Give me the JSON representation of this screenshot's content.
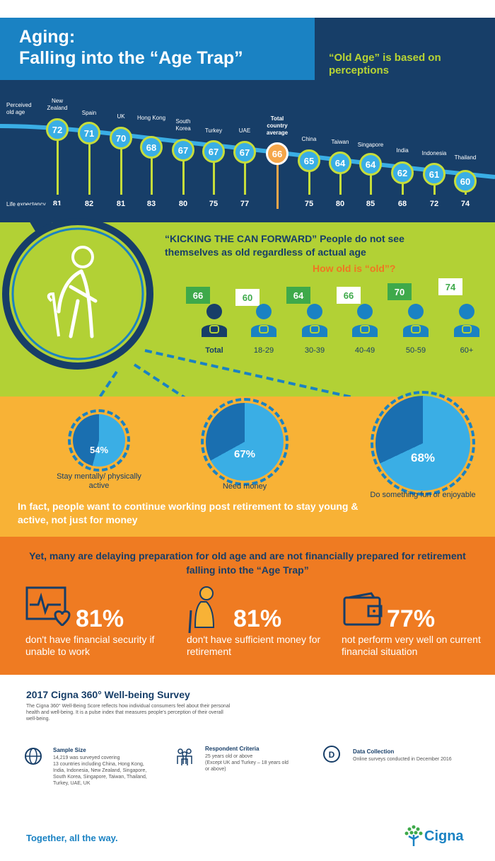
{
  "header": {
    "title": "Aging:\nFalling into the “Age Trap”",
    "subtitle": "“Old Age” is based on perceptions",
    "perceived_label": "Perceived\nold age",
    "life_label": "Life expectancy",
    "countries": [
      {
        "name": "New Zealand",
        "old_age": "72",
        "life": "81"
      },
      {
        "name": "Spain",
        "old_age": "71",
        "life": "82"
      },
      {
        "name": "UK",
        "old_age": "70",
        "life": "81"
      },
      {
        "name": "Hong Kong",
        "old_age": "68",
        "life": "83"
      },
      {
        "name": "South Korea",
        "old_age": "67",
        "life": "80"
      },
      {
        "name": "Turkey",
        "old_age": "67",
        "life": "75"
      },
      {
        "name": "UAE",
        "old_age": "67",
        "life": "77"
      },
      {
        "name": "Total country average",
        "old_age": "66",
        "life": ""
      },
      {
        "name": "China",
        "old_age": "65",
        "life": "75"
      },
      {
        "name": "Taiwan",
        "old_age": "64",
        "life": "80"
      },
      {
        "name": "Singapore",
        "old_age": "64",
        "life": "85"
      },
      {
        "name": "India",
        "old_age": "62",
        "life": "68"
      },
      {
        "name": "Indonesia",
        "old_age": "61",
        "life": "72"
      },
      {
        "name": "Thailand",
        "old_age": "60",
        "life": "74"
      }
    ]
  },
  "kicking": {
    "headline": "“KICKING THE CAN FORWARD” People do not see themselves as old regardless of actual age",
    "question": "How old is “old”?",
    "groups": [
      {
        "label": "Total",
        "value": "66"
      },
      {
        "label": "18-29",
        "value": "60"
      },
      {
        "label": "30-39",
        "value": "64"
      },
      {
        "label": "40-49",
        "value": "66"
      },
      {
        "label": "50-59",
        "value": "70"
      },
      {
        "label": "60+",
        "value": "74"
      }
    ]
  },
  "working": {
    "items": [
      {
        "pct": "54%",
        "caption": "Stay mentally/ physically active",
        "fraction": 0.54
      },
      {
        "pct": "67%",
        "caption": "Need money",
        "fraction": 0.67
      },
      {
        "pct": "68%",
        "caption": "Do something fun or enjoyable",
        "fraction": 0.68
      }
    ],
    "statement": "In fact, people want to continue working post retirement to stay young & active, not just for money"
  },
  "trap": {
    "headline": "Yet, many are delaying preparation for old age and are not financially prepared for retirement falling into the “Age Trap”",
    "stats": [
      {
        "pct": "81%",
        "desc": "don't have financial security if unable to work"
      },
      {
        "pct": "81%",
        "desc": "don't have sufficient money for retirement"
      },
      {
        "pct": "77%",
        "desc": "not perform very well on current financial situation"
      }
    ]
  },
  "survey": {
    "title": "2017 Cigna 360° Well-being Survey",
    "description": "The Cigna 360° Well-Being Score reflects how individual consumers feel about their personal health and well-being. It is a pulse index that measures people's perception of their overall well-being.",
    "sample_title": "Sample Size",
    "sample_desc": "14,219 was surveyed covering\n13 countries including China, Hong Kong,\nIndia, Indonesia, New Zealand, Singapore,\nSouth Korea, Singapore, Taiwan, Thailand,\nTurkey, UAE, UK",
    "criteria_title": "Respondent Criteria",
    "criteria_desc": "25 years old or above\n(Except UK and Turkey – 18 years old\nor above)",
    "collection_title": "Data Collection",
    "collection_desc": "Online surveys conducted in December 2016"
  },
  "footer": {
    "tagline": "Together, all the way.",
    "logo": "Cigna"
  },
  "colors": {
    "navy": "#173e68",
    "blue": "#1a82c3",
    "lime": "#b2d135",
    "yellow": "#f8b236",
    "orange": "#ef7b22"
  }
}
